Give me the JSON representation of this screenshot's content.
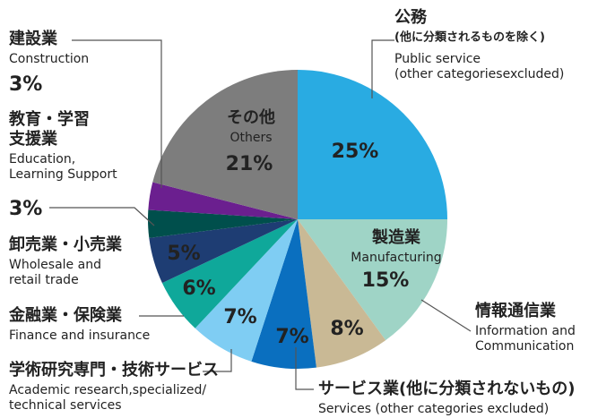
{
  "chart_data": {
    "type": "pie",
    "categories": [
      {
        "name": [
          "公務",
          "(他に分類されるものを除く)"
        ],
        "name_en": [
          "Public service",
          "(other categoriesexcluded)"
        ]
      },
      {
        "name": [
          "製造業"
        ],
        "name_en": [
          "Manufacturing"
        ]
      },
      {
        "name": [
          "情報通信業"
        ],
        "name_en": [
          "Information and",
          "Communication"
        ]
      },
      {
        "name": [
          "サービス業(他に分類されないもの)"
        ],
        "name_en": [
          "Services (other categories excluded)"
        ]
      },
      {
        "name": [
          "学術研究専門・技術サービス"
        ],
        "name_en": [
          "Academic research,specialized/",
          "technical services"
        ]
      },
      {
        "name": [
          "金融業・保険業"
        ],
        "name_en": [
          "Finance and insurance"
        ]
      },
      {
        "name": [
          "卸売業・小売業"
        ],
        "name_en": [
          "Wholesale and",
          "retail trade"
        ]
      },
      {
        "name": [
          "教育・学習",
          "支援業"
        ],
        "name_en": [
          "Education,",
          "Learning Support"
        ]
      },
      {
        "name": [
          "建設業"
        ],
        "name_en": [
          "Construction"
        ]
      },
      {
        "name": [
          "その他"
        ],
        "name_en": [
          "Others"
        ]
      }
    ],
    "values": [
      25,
      15,
      8,
      7,
      7,
      6,
      5,
      3,
      3,
      21
    ],
    "value_labels": [
      "25%",
      "15%",
      "8%",
      "7%",
      "7%",
      "6%",
      "5%",
      "3%",
      "3%",
      "21%"
    ],
    "colors": [
      "#29abe2",
      "#9fd4c6",
      "#c9b995",
      "#0a6fbf",
      "#7fcdf3",
      "#0fa89a",
      "#1e3d73",
      "#004f4c",
      "#6b1f8f",
      "#7d7d7d"
    ]
  }
}
